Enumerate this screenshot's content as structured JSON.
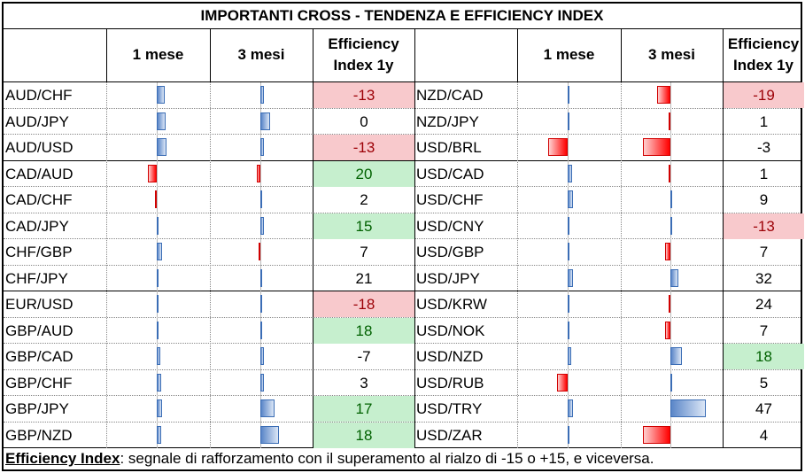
{
  "title": "IMPORTANTI CROSS - TENDENZA E EFFICIENCY INDEX",
  "headers": {
    "m1": "1 mese",
    "m3": "3 mesi",
    "eff1": "Efficiency",
    "eff2": "Index 1y"
  },
  "left_rows": [
    {
      "pair": "AUD/CHF",
      "m1": 0.18,
      "m3": 0.08,
      "eff": "-13",
      "hl": "neg"
    },
    {
      "pair": "AUD/JPY",
      "m1": 0.2,
      "m3": 0.22,
      "eff": "0",
      "hl": ""
    },
    {
      "pair": "AUD/USD",
      "m1": 0.22,
      "m3": 0.08,
      "eff": "-13",
      "hl": "neg"
    },
    {
      "pair": "CAD/AUD",
      "m1": -0.2,
      "m3": -0.08,
      "eff": "20",
      "hl": "pos"
    },
    {
      "pair": "CAD/CHF",
      "m1": -0.02,
      "m3": 0.01,
      "eff": "2",
      "hl": ""
    },
    {
      "pair": "CAD/JPY",
      "m1": 0.01,
      "m3": 0.08,
      "eff": "15",
      "hl": "pos"
    },
    {
      "pair": "CHF/GBP",
      "m1": 0.12,
      "m3": -0.04,
      "eff": "7",
      "hl": ""
    },
    {
      "pair": "CHF/JPY",
      "m1": 0.03,
      "m3": 0.02,
      "eff": "21",
      "hl": ""
    },
    {
      "pair": "EUR/USD",
      "m1": 0.01,
      "m3": 0.0,
      "eff": "-18",
      "hl": "neg"
    },
    {
      "pair": "GBP/AUD",
      "m1": 0.02,
      "m3": 0.01,
      "eff": "18",
      "hl": "pos"
    },
    {
      "pair": "GBP/CAD",
      "m1": 0.08,
      "m3": 0.08,
      "eff": "-7",
      "hl": ""
    },
    {
      "pair": "GBP/CHF",
      "m1": 0.1,
      "m3": 0.08,
      "eff": "3",
      "hl": ""
    },
    {
      "pair": "GBP/JPY",
      "m1": 0.12,
      "m3": 0.32,
      "eff": "17",
      "hl": "pos"
    },
    {
      "pair": "GBP/NZD",
      "m1": 0.09,
      "m3": 0.42,
      "eff": "18",
      "hl": "pos"
    }
  ],
  "right_rows": [
    {
      "pair": "NZD/CAD",
      "m1": 0.01,
      "m3": -0.3,
      "eff": "-19",
      "hl": "neg"
    },
    {
      "pair": "NZD/JPY",
      "m1": 0.02,
      "m3": -0.03,
      "eff": "1",
      "hl": ""
    },
    {
      "pair": "USD/BRL",
      "m1": -0.45,
      "m3": -0.62,
      "eff": "-3",
      "hl": ""
    },
    {
      "pair": "USD/CAD",
      "m1": 0.1,
      "m3": -0.02,
      "eff": "1",
      "hl": ""
    },
    {
      "pair": "USD/CHF",
      "m1": 0.12,
      "m3": 0.0,
      "eff": "9",
      "hl": ""
    },
    {
      "pair": "USD/CNY",
      "m1": 0.01,
      "m3": 0.0,
      "eff": "-13",
      "hl": "neg"
    },
    {
      "pair": "USD/GBP",
      "m1": 0.02,
      "m3": -0.12,
      "eff": "7",
      "hl": ""
    },
    {
      "pair": "USD/JPY",
      "m1": 0.12,
      "m3": 0.18,
      "eff": "32",
      "hl": ""
    },
    {
      "pair": "USD/KRW",
      "m1": 0.01,
      "m3": -0.01,
      "eff": "24",
      "hl": ""
    },
    {
      "pair": "USD/NOK",
      "m1": 0.01,
      "m3": -0.12,
      "eff": "7",
      "hl": ""
    },
    {
      "pair": "USD/NZD",
      "m1": 0.08,
      "m3": 0.25,
      "eff": "18",
      "hl": "pos"
    },
    {
      "pair": "USD/RUB",
      "m1": -0.25,
      "m3": 0.0,
      "eff": "5",
      "hl": ""
    },
    {
      "pair": "USD/TRY",
      "m1": 0.12,
      "m3": 0.8,
      "eff": "47",
      "hl": ""
    },
    {
      "pair": "USD/ZAR",
      "m1": 0.01,
      "m3": -0.62,
      "eff": "4",
      "hl": ""
    }
  ],
  "footer": {
    "label": "Efficiency Index",
    "text": ": segnale di rafforzamento con il superamento al rialzo di -15 o +15, e viceversa."
  }
}
